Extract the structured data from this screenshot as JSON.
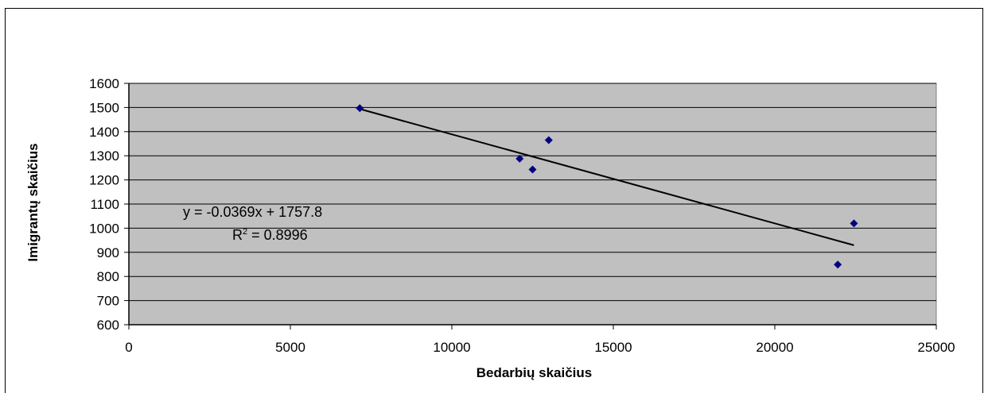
{
  "chart_data": {
    "type": "scatter",
    "xlabel": "Bedarbių skaičius",
    "ylabel": "Imigrantų skaičius",
    "xlim": [
      0,
      25000
    ],
    "ylim": [
      600,
      1600
    ],
    "x_ticks": [
      0,
      5000,
      10000,
      15000,
      20000,
      25000
    ],
    "y_ticks": [
      600,
      700,
      800,
      900,
      1000,
      1100,
      1200,
      1300,
      1400,
      1500,
      1600
    ],
    "grid": "horizontal",
    "plot_background": "#c0c0c0",
    "marker_color": "#000080",
    "trendline_color": "#000000",
    "series": [
      {
        "points": [
          {
            "x": 7150,
            "y": 1497
          },
          {
            "x": 12100,
            "y": 1288
          },
          {
            "x": 12500,
            "y": 1243
          },
          {
            "x": 13000,
            "y": 1365
          },
          {
            "x": 21950,
            "y": 849
          },
          {
            "x": 22450,
            "y": 1020
          }
        ]
      }
    ],
    "trendline": {
      "slope": -0.0369,
      "intercept": 1757.8,
      "x_range": [
        7150,
        22450
      ],
      "equation": "y = -0.0369x + 1757.8",
      "r2_prefix": "R",
      "r2_sup": "2",
      "r2_suffix": " = 0.8996"
    }
  }
}
